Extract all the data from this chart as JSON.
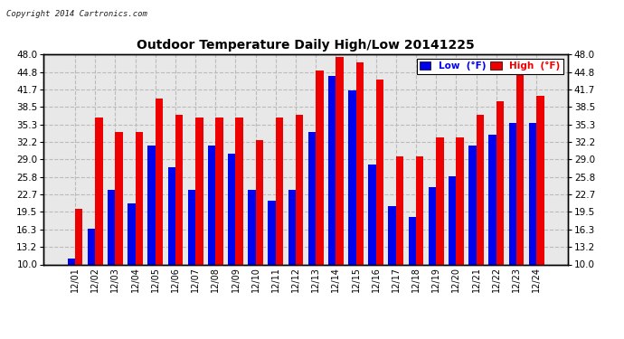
{
  "title": "Outdoor Temperature Daily High/Low 20141225",
  "copyright": "Copyright 2014 Cartronics.com",
  "legend_low": "Low  (°F)",
  "legend_high": "High  (°F)",
  "low_color": "#0000ee",
  "high_color": "#ee0000",
  "background_color": "#ffffff",
  "plot_bg_color": "#f0f0f0",
  "ylim": [
    10.0,
    48.0
  ],
  "yticks": [
    10.0,
    13.2,
    16.3,
    19.5,
    22.7,
    25.8,
    29.0,
    32.2,
    35.3,
    38.5,
    41.7,
    44.8,
    48.0
  ],
  "categories": [
    "12/01",
    "12/02",
    "12/03",
    "12/04",
    "12/05",
    "12/06",
    "12/07",
    "12/08",
    "12/09",
    "12/10",
    "12/11",
    "12/12",
    "12/13",
    "12/14",
    "12/15",
    "12/16",
    "12/17",
    "12/18",
    "12/19",
    "12/20",
    "12/21",
    "12/22",
    "12/23",
    "12/24"
  ],
  "low_values": [
    11.0,
    16.5,
    23.5,
    21.0,
    31.5,
    27.5,
    23.5,
    31.5,
    30.0,
    23.5,
    21.5,
    23.5,
    34.0,
    44.0,
    41.5,
    28.0,
    20.5,
    18.5,
    24.0,
    26.0,
    31.5,
    33.5,
    35.5,
    35.5
  ],
  "high_values": [
    20.0,
    36.5,
    34.0,
    34.0,
    40.0,
    37.0,
    36.5,
    36.5,
    36.5,
    32.5,
    36.5,
    37.0,
    45.0,
    47.5,
    46.5,
    43.5,
    29.5,
    29.5,
    33.0,
    33.0,
    37.0,
    39.5,
    45.0,
    40.5
  ]
}
